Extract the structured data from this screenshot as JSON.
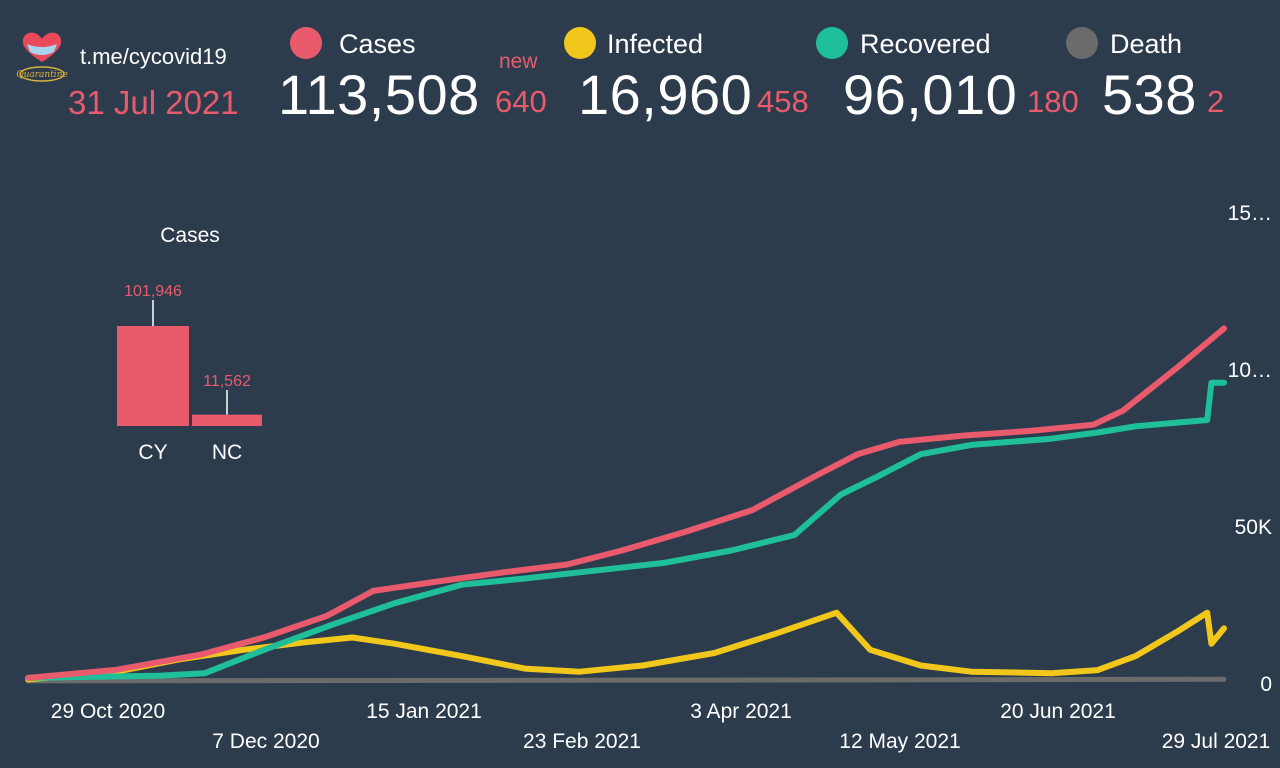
{
  "header": {
    "link": "t.me/cycovid19",
    "date": "31 Jul 2021",
    "logo_text": "Quarantine"
  },
  "stats": [
    {
      "key": "cases",
      "label": "Cases",
      "value": "113,508",
      "delta": "640",
      "new_label": "new",
      "color": "#e95b6c"
    },
    {
      "key": "infected",
      "label": "Infected",
      "value": "16,960",
      "delta": "458",
      "color": "#f2c71b"
    },
    {
      "key": "recovered",
      "label": "Recovered",
      "value": "96,010",
      "delta": "180",
      "color": "#1fbf9a"
    },
    {
      "key": "death",
      "label": "Death",
      "value": "538",
      "delta": "2",
      "color": "#6b6b6b"
    }
  ],
  "chart_data": [
    {
      "type": "line",
      "x_start": "2020-10-20",
      "x_end": "2021-07-31",
      "x_ticks": [
        "29 Oct 2020",
        "7 Dec 2020",
        "15 Jan 2021",
        "23 Feb 2021",
        "3 Apr 2021",
        "12 May 2021",
        "20 Jun 2021",
        "29 Jul 2021"
      ],
      "y_ticks": [
        "0",
        "50K",
        "10…",
        "15…"
      ],
      "ylim": [
        0,
        150000
      ],
      "series": [
        {
          "name": "Cases",
          "color": "#e95b6c",
          "points": [
            [
              "2020-10-20",
              1000
            ],
            [
              "2020-11-10",
              3600
            ],
            [
              "2020-11-30",
              8500
            ],
            [
              "2020-12-15",
              14000
            ],
            [
              "2020-12-30",
              21000
            ],
            [
              "2021-01-10",
              29000
            ],
            [
              "2021-01-25",
              32000
            ],
            [
              "2021-02-10",
              35000
            ],
            [
              "2021-02-25",
              37500
            ],
            [
              "2021-03-10",
              42000
            ],
            [
              "2021-03-25",
              48000
            ],
            [
              "2021-04-10",
              55000
            ],
            [
              "2021-04-25",
              66000
            ],
            [
              "2021-05-05",
              73000
            ],
            [
              "2021-05-15",
              77000
            ],
            [
              "2021-05-30",
              79000
            ],
            [
              "2021-06-15",
              80500
            ],
            [
              "2021-06-30",
              82500
            ],
            [
              "2021-07-07",
              87000
            ],
            [
              "2021-07-20",
              101000
            ],
            [
              "2021-07-31",
              113508
            ]
          ]
        },
        {
          "name": "Recovered",
          "color": "#1fbf9a",
          "points": [
            [
              "2020-10-20",
              1000
            ],
            [
              "2020-11-20",
              1700
            ],
            [
              "2020-12-01",
              2500
            ],
            [
              "2020-12-15",
              10000
            ],
            [
              "2020-12-31",
              18000
            ],
            [
              "2021-01-15",
              25000
            ],
            [
              "2021-01-31",
              31000
            ],
            [
              "2021-02-15",
              33000
            ],
            [
              "2021-02-28",
              35000
            ],
            [
              "2021-03-20",
              38000
            ],
            [
              "2021-04-05",
              42000
            ],
            [
              "2021-04-20",
              47000
            ],
            [
              "2021-05-01",
              60000
            ],
            [
              "2021-05-10",
              66000
            ],
            [
              "2021-05-20",
              73000
            ],
            [
              "2021-06-01",
              76000
            ],
            [
              "2021-06-20",
              78000
            ],
            [
              "2021-07-01",
              80000
            ],
            [
              "2021-07-10",
              82000
            ],
            [
              "2021-07-27",
              84000
            ],
            [
              "2021-07-28",
              96000
            ],
            [
              "2021-07-31",
              96010
            ]
          ]
        },
        {
          "name": "Infected",
          "color": "#f2c71b",
          "points": [
            [
              "2020-10-20",
              500
            ],
            [
              "2020-11-10",
              3000
            ],
            [
              "2020-11-25",
              7000
            ],
            [
              "2020-12-10",
              10000
            ],
            [
              "2020-12-25",
              12500
            ],
            [
              "2021-01-05",
              14000
            ],
            [
              "2021-01-15",
              12000
            ],
            [
              "2021-01-31",
              8000
            ],
            [
              "2021-02-15",
              4000
            ],
            [
              "2021-02-28",
              3000
            ],
            [
              "2021-03-15",
              5000
            ],
            [
              "2021-04-01",
              9000
            ],
            [
              "2021-04-15",
              15000
            ],
            [
              "2021-04-30",
              22000
            ],
            [
              "2021-05-08",
              10000
            ],
            [
              "2021-05-20",
              5000
            ],
            [
              "2021-06-01",
              3000
            ],
            [
              "2021-06-20",
              2500
            ],
            [
              "2021-07-01",
              3500
            ],
            [
              "2021-07-10",
              8000
            ],
            [
              "2021-07-20",
              16000
            ],
            [
              "2021-07-27",
              22000
            ],
            [
              "2021-07-28",
              12000
            ],
            [
              "2021-07-31",
              16960
            ]
          ]
        },
        {
          "name": "Death",
          "color": "#6b6b6b",
          "points": [
            [
              "2020-10-20",
              20
            ],
            [
              "2021-01-01",
              150
            ],
            [
              "2021-04-01",
              300
            ],
            [
              "2021-07-31",
              538
            ]
          ]
        }
      ]
    },
    {
      "type": "bar",
      "title": "Cases",
      "categories": [
        "CY",
        "NC"
      ],
      "values": [
        101946,
        11562
      ],
      "value_labels": [
        "101,946",
        "11,562"
      ],
      "color": "#e95b6c"
    }
  ]
}
